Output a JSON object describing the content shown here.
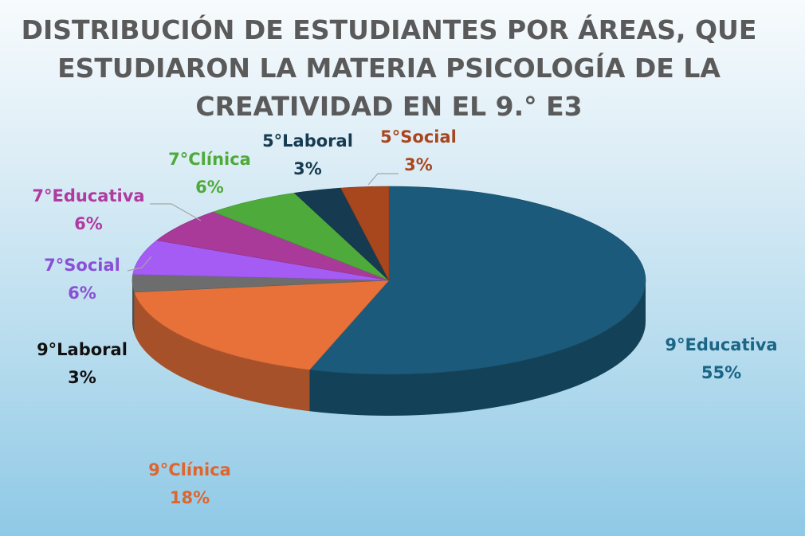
{
  "chart_data": {
    "type": "pie",
    "title_lines": [
      "DISTRIBUCIÓN DE ESTUDIANTES POR ÁREAS, QUE",
      "ESTUDIARON LA MATERIA PSICOLOGÍA DE LA",
      "CREATIVIDAD EN EL 9.° E3"
    ],
    "slices": [
      {
        "name": "9°Educativa",
        "value": 55,
        "label": "55%",
        "color": "#1b5a7a",
        "label_color": "#1b6585"
      },
      {
        "name": "9°Clínica",
        "value": 18,
        "label": "18%",
        "color": "#e8713a",
        "label_color": "#e0652d"
      },
      {
        "name": "9°Laboral",
        "value": 3,
        "label": "3%",
        "color": "#6d6d6d",
        "label_color": "#111111"
      },
      {
        "name": "7°Social",
        "value": 6,
        "label": "6%",
        "color": "#a45cf5",
        "label_color": "#8a4fd6"
      },
      {
        "name": "7°Educativa",
        "value": 6,
        "label": "6%",
        "color": "#a93a9a",
        "label_color": "#b03aa0"
      },
      {
        "name": "7°Clínica",
        "value": 6,
        "label": "6%",
        "color": "#4faa3c",
        "label_color": "#4eaa3a"
      },
      {
        "name": "5°Laboral",
        "value": 3,
        "label": "3%",
        "color": "#163a4f",
        "label_color": "#163a4f"
      },
      {
        "name": "5°Social",
        "value": 3,
        "label": "3%",
        "color": "#a8461e",
        "label_color": "#a8461e"
      }
    ],
    "start": "top",
    "direction": "clockwise",
    "style": "3d-tilted",
    "legend": "none"
  }
}
